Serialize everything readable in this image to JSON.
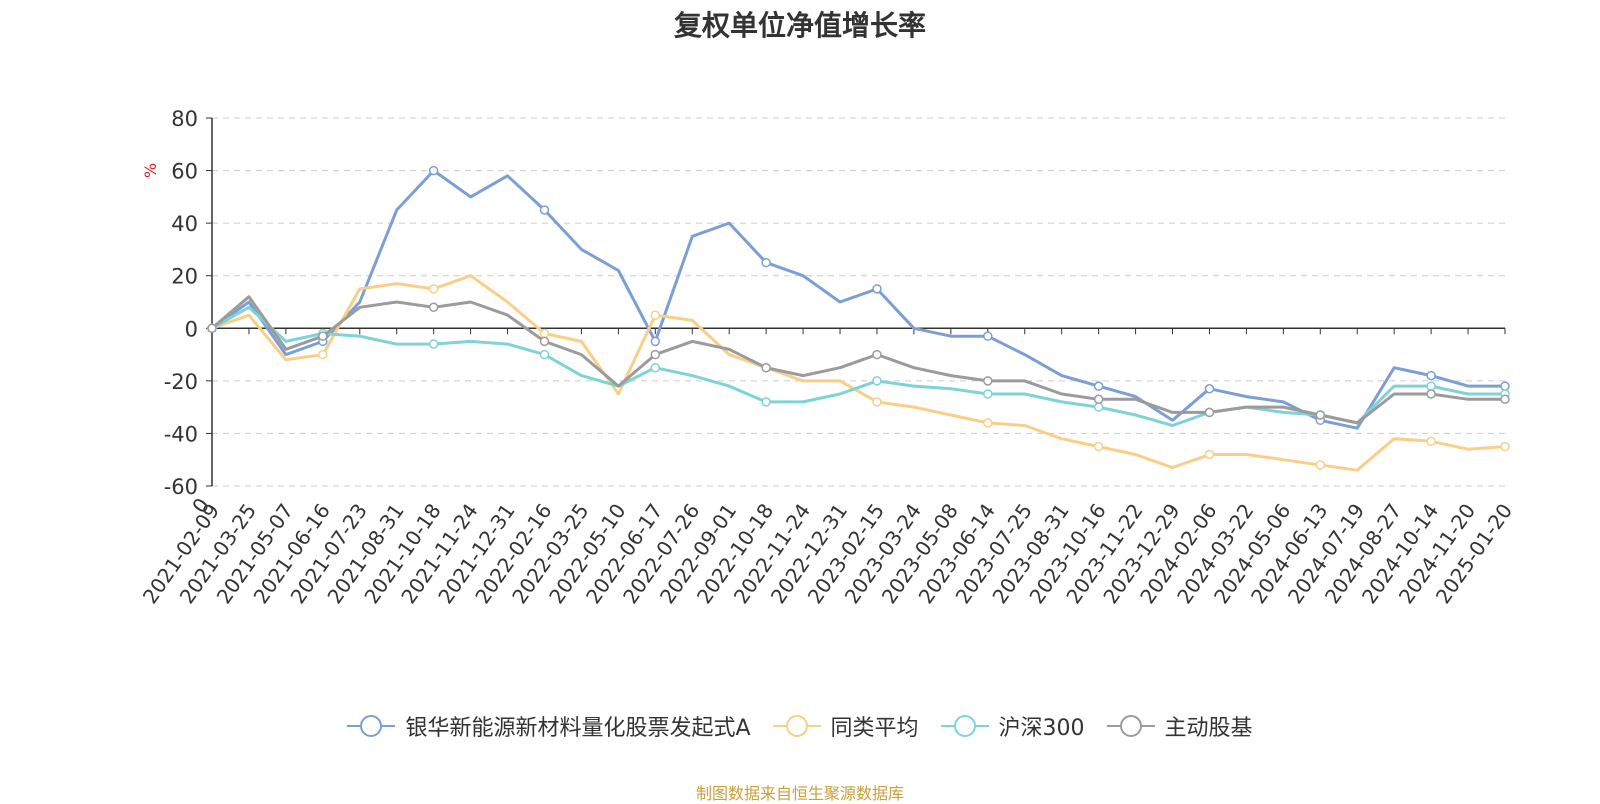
{
  "chart_data": {
    "type": "line",
    "title": "复权单位净值增长率",
    "ylabel": "%",
    "ylim": [
      -60,
      80
    ],
    "yticks": [
      80,
      60,
      40,
      20,
      0,
      -20,
      -40,
      -60
    ],
    "x_start_label": "0",
    "categories": [
      "2021-02-09",
      "2021-03-25",
      "2021-05-07",
      "2021-06-16",
      "2021-07-23",
      "2021-08-31",
      "2021-10-18",
      "2021-11-24",
      "2021-12-31",
      "2022-02-16",
      "2022-03-25",
      "2022-05-10",
      "2022-06-17",
      "2022-07-26",
      "2022-09-01",
      "2022-10-18",
      "2022-11-24",
      "2022-12-31",
      "2023-02-15",
      "2023-03-24",
      "2023-05-08",
      "2023-06-14",
      "2023-07-25",
      "2023-08-31",
      "2023-10-16",
      "2023-11-22",
      "2023-12-29",
      "2024-02-06",
      "2024-03-22",
      "2024-05-06",
      "2024-06-13",
      "2024-07-19",
      "2024-08-27",
      "2024-10-14",
      "2024-11-20",
      "2025-01-20"
    ],
    "grid": "dashed-horizontal",
    "legend_position": "bottom",
    "series": [
      {
        "name": "银华新能源新材料量化股票发起式A",
        "color": "#7b9fd4",
        "values": [
          0,
          10,
          -10,
          -5,
          10,
          45,
          60,
          50,
          58,
          45,
          30,
          22,
          -5,
          35,
          40,
          25,
          20,
          10,
          15,
          0,
          -3,
          -3,
          -10,
          -18,
          -22,
          -26,
          -35,
          -23,
          -26,
          -28,
          -35,
          -38,
          -15,
          -18,
          -22,
          -22
        ]
      },
      {
        "name": "同类平均",
        "color": "#f9cf88",
        "values": [
          0,
          5,
          -12,
          -10,
          15,
          17,
          15,
          20,
          10,
          -2,
          -5,
          -25,
          5,
          3,
          -10,
          -15,
          -20,
          -20,
          -28,
          -30,
          -33,
          -36,
          -37,
          -42,
          -45,
          -48,
          -53,
          -48,
          -48,
          -50,
          -52,
          -54,
          -42,
          -43,
          -46,
          -45
        ]
      },
      {
        "name": "沪深300",
        "color": "#7ed3d6",
        "values": [
          0,
          8,
          -5,
          -2,
          -3,
          -6,
          -6,
          -5,
          -6,
          -10,
          -18,
          -22,
          -15,
          -18,
          -22,
          -28,
          -28,
          -25,
          -20,
          -22,
          -23,
          -25,
          -25,
          -28,
          -30,
          -33,
          -37,
          -32,
          -30,
          -32,
          -33,
          -36,
          -22,
          -22,
          -25,
          -25
        ]
      },
      {
        "name": "主动股基",
        "color": "#9b9b9b",
        "values": [
          0,
          12,
          -8,
          -3,
          8,
          10,
          8,
          10,
          5,
          -5,
          -10,
          -22,
          -10,
          -5,
          -8,
          -15,
          -18,
          -15,
          -10,
          -15,
          -18,
          -20,
          -20,
          -25,
          -27,
          -27,
          -32,
          -32,
          -30,
          -30,
          -33,
          -36,
          -25,
          -25,
          -27,
          -27
        ]
      }
    ]
  },
  "legend": {
    "items": [
      {
        "label": "银华新能源新材料量化股票发起式A",
        "color": "#7b9fd4"
      },
      {
        "label": "同类平均",
        "color": "#f9cf88"
      },
      {
        "label": "沪深300",
        "color": "#7ed3d6"
      },
      {
        "label": "主动股基",
        "color": "#9b9b9b"
      }
    ]
  },
  "footer": {
    "source": "制图数据来自恒生聚源数据库"
  },
  "colors": {
    "unit_label": "#e02020",
    "source_text": "#c8a03c",
    "axis": "#333333",
    "grid": "#cccccc"
  }
}
